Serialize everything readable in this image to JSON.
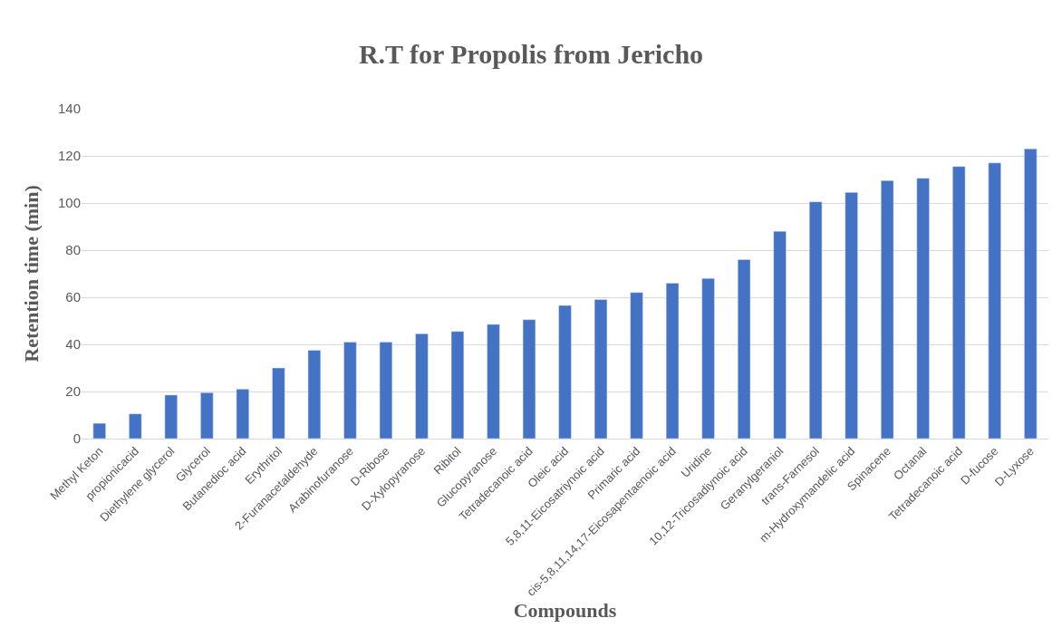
{
  "chart_data": {
    "type": "bar",
    "title": "R.T for Propolis from Jericho",
    "xlabel": "Compounds",
    "ylabel": "Retention time (min)",
    "categories": [
      "Methyl Keton",
      "propionicacid",
      "Diethylene glycerol",
      "Glycerol",
      "Butanedioc acid",
      "Erythritol",
      "2-Furanacetaldehyde",
      "Arabinofuranose",
      "D-Ribose",
      "D-Xylopyranose",
      "Ribitol",
      "Glucopyranose",
      "Tetradecanoic acid",
      "Oleic acid",
      "5,8,11-Eicosatriynoic acid",
      "Primaric acid",
      "cis-5,8,11,14,17-Eicosapentaenoic acid",
      "Uridine",
      "10,12-Tricosadiynoic acid",
      "Geranylgeraniol",
      "trans-Farnesol",
      "m-Hydroxymandelic acid",
      "Spinacene",
      "Octanal",
      "Tetradecanoic acid",
      "D-fucose",
      "D-Lyxose"
    ],
    "values": [
      6.5,
      10.5,
      18.5,
      19.5,
      21,
      30,
      37.5,
      41,
      41,
      44.5,
      45.5,
      48.5,
      50.5,
      56.5,
      59,
      62,
      66,
      68,
      76,
      88,
      100.5,
      104.5,
      109.5,
      110.5,
      115.5,
      117,
      123
    ],
    "color": "#4472c4",
    "ylim": [
      0,
      140
    ],
    "yticks": [
      0,
      20,
      40,
      60,
      80,
      100,
      120,
      140
    ],
    "grid": "y"
  }
}
